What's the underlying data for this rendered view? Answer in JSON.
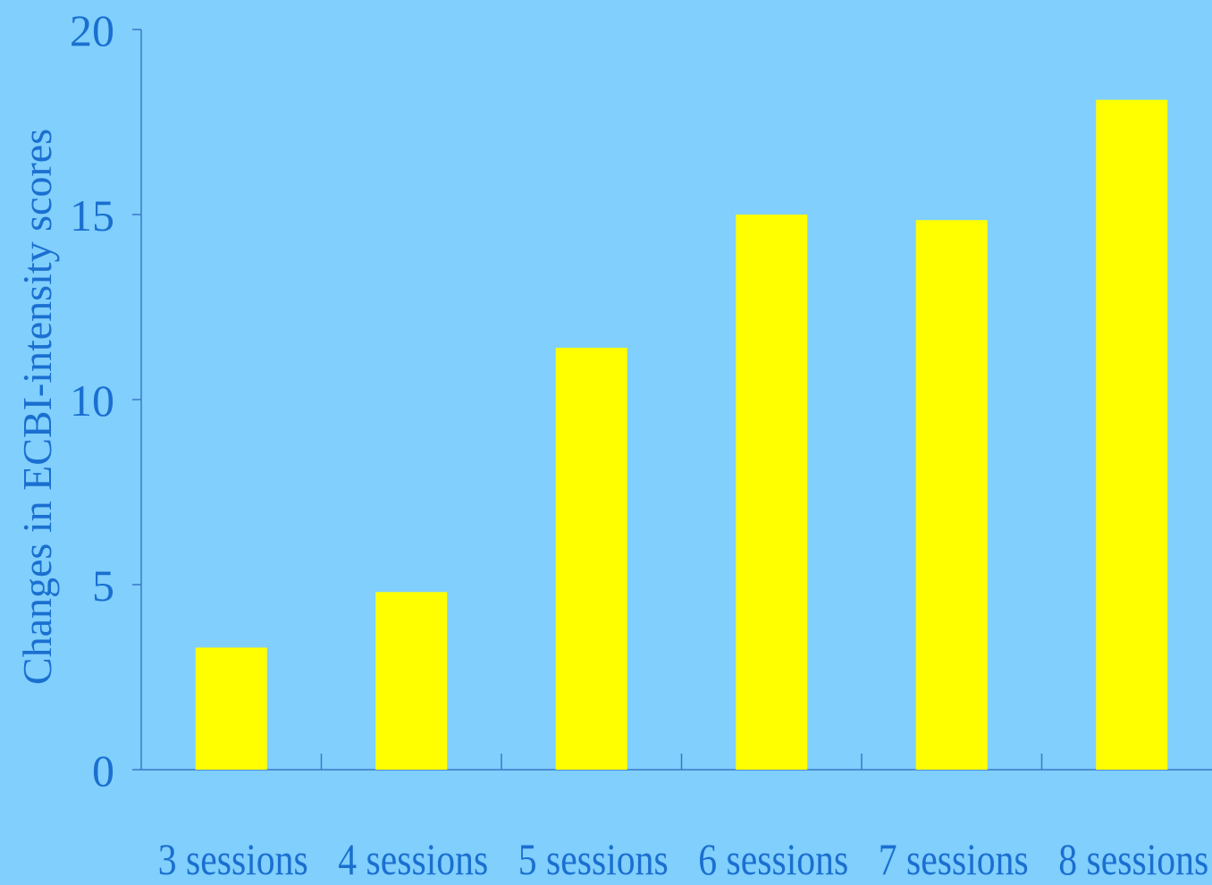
{
  "chart_data": {
    "type": "bar",
    "title": "",
    "xlabel": "",
    "ylabel": "Changes in ECBI-intensity scores",
    "categories": [
      "3 sessions",
      "4 sessions",
      "5 sessions",
      "6 sessions",
      "7 sessions",
      "8 sessions"
    ],
    "values": [
      3.3,
      4.8,
      11.4,
      15.0,
      14.85,
      18.1
    ],
    "ylim": [
      0,
      20
    ],
    "yticks": [
      0,
      5,
      10,
      15,
      20
    ],
    "grid": false,
    "legend": "none",
    "colors": {
      "background": "#80CFFC",
      "bar": "#FFFF00",
      "text": "#1a6fd0",
      "axis": "#3a78c8"
    }
  }
}
